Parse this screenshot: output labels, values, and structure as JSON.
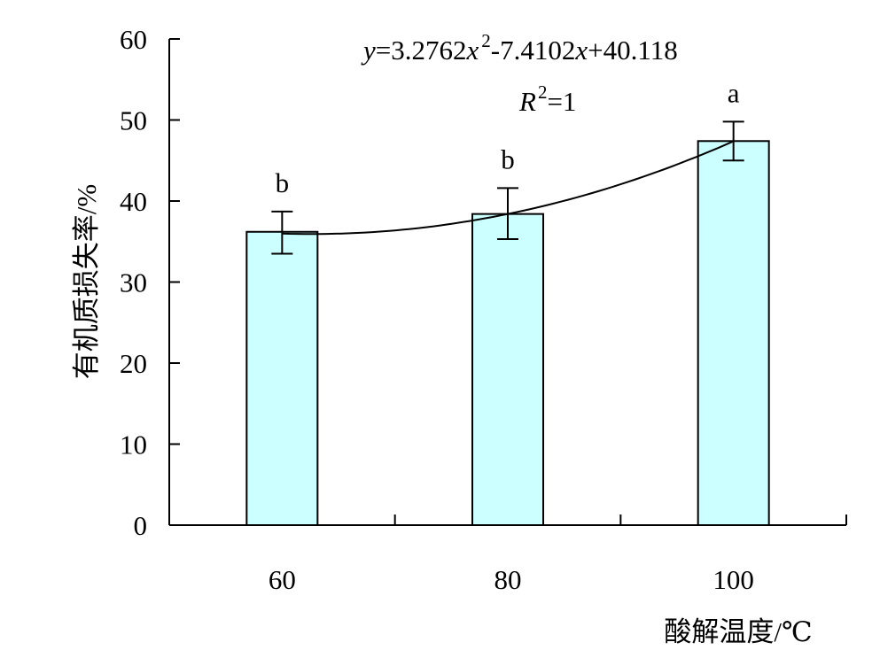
{
  "chart_data": {
    "type": "bar",
    "categories": [
      "60",
      "80",
      "100"
    ],
    "values": [
      36.2,
      38.4,
      47.4
    ],
    "error_low": [
      33.5,
      35.3,
      45.0
    ],
    "error_high": [
      38.7,
      41.6,
      49.8
    ],
    "significance_letters": [
      "b",
      "b",
      "a"
    ],
    "xlabel": "酸解温度/℃",
    "ylabel": "有机质损失率/%",
    "ylim": [
      0,
      60
    ],
    "yticks": [
      "0",
      "10",
      "20",
      "30",
      "40",
      "50",
      "60"
    ],
    "bar_color": "#ccffff",
    "trendline": {
      "equation": {
        "y": "y",
        "eq1": "=3.2762",
        "x1": "x",
        "sup": "2",
        "eq2": "-7.4102",
        "x2": "x",
        "eq3": "+40.118"
      },
      "r2": {
        "r": "R",
        "sup": "2",
        "eq": "=1"
      },
      "coefficients": [
        3.2762,
        -7.4102,
        40.118
      ]
    }
  }
}
